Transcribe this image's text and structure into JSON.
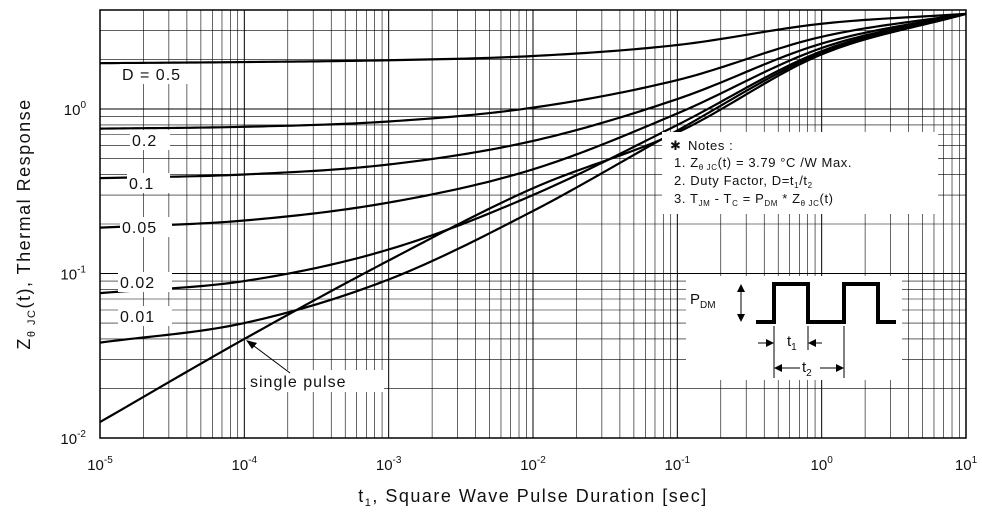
{
  "chart_data": {
    "type": "line",
    "x_scale": "log",
    "y_scale": "log",
    "xlim": [
      1e-05,
      10
    ],
    "ylim": [
      0.01,
      4
    ],
    "grid": true,
    "xlabel": {
      "main": "t",
      "sub": "1",
      "rest": ", Square Wave Pulse Duration [sec]"
    },
    "ylabel": {
      "main": "Z",
      "sub": "θ JC",
      "rest": "(t), Thermal Response"
    },
    "x_ticks": [
      {
        "base": "10",
        "exp": "-5",
        "value": 1e-05
      },
      {
        "base": "10",
        "exp": "-4",
        "value": 0.0001
      },
      {
        "base": "10",
        "exp": "-3",
        "value": 0.001
      },
      {
        "base": "10",
        "exp": "-2",
        "value": 0.01
      },
      {
        "base": "10",
        "exp": "-1",
        "value": 0.1
      },
      {
        "base": "10",
        "exp": "0",
        "value": 1
      },
      {
        "base": "10",
        "exp": "1",
        "value": 10
      }
    ],
    "y_ticks": [
      {
        "base": "10",
        "exp": "-2",
        "value": 0.01
      },
      {
        "base": "10",
        "exp": "-1",
        "value": 0.1
      },
      {
        "base": "10",
        "exp": "0",
        "value": 1
      }
    ],
    "x": [
      1e-05,
      0.0001,
      0.001,
      0.01,
      0.1,
      1,
      10
    ],
    "series": [
      {
        "label": "D = 0.5",
        "values": [
          1.9,
          1.93,
          1.98,
          2.1,
          2.45,
          3.3,
          3.79
        ]
      },
      {
        "label": "0.2",
        "values": [
          0.76,
          0.78,
          0.84,
          1.02,
          1.5,
          2.75,
          3.79
        ]
      },
      {
        "label": "0.1",
        "values": [
          0.38,
          0.4,
          0.46,
          0.64,
          1.15,
          2.5,
          3.79
        ]
      },
      {
        "label": "0.05",
        "values": [
          0.19,
          0.21,
          0.27,
          0.43,
          0.94,
          2.35,
          3.79
        ]
      },
      {
        "label": "0.02",
        "values": [
          0.076,
          0.09,
          0.14,
          0.3,
          0.8,
          2.25,
          3.79
        ]
      },
      {
        "label": "0.01",
        "values": [
          0.038,
          0.05,
          0.092,
          0.24,
          0.74,
          2.2,
          3.79
        ]
      },
      {
        "label": "single pulse",
        "values": [
          0.0125,
          0.04,
          0.12,
          0.33,
          0.72,
          2.15,
          3.79
        ]
      }
    ],
    "annotations": {
      "notes_title": "Notes :",
      "notes_bullet": "✱",
      "note1": {
        "prefix": "1. Z",
        "sub": "θ JC",
        "rest": "(t) = 3.79 °C /W Max."
      },
      "note2": {
        "prefix": "2. Duty Factor, D=t",
        "sub1": "1",
        "mid": "/t",
        "sub2": "2"
      },
      "note3": {
        "a": "3. T",
        "s1": "JM",
        "b": " - T",
        "s2": "C",
        "c": " = P",
        "s3": "DM",
        "d": " * Z",
        "s4": "θ JC",
        "e": "(t)"
      },
      "pulse_pdm": {
        "main": "P",
        "sub": "DM"
      },
      "pulse_t1": {
        "main": "t",
        "sub": "1"
      },
      "pulse_t2": {
        "main": "t",
        "sub": "2"
      }
    }
  }
}
